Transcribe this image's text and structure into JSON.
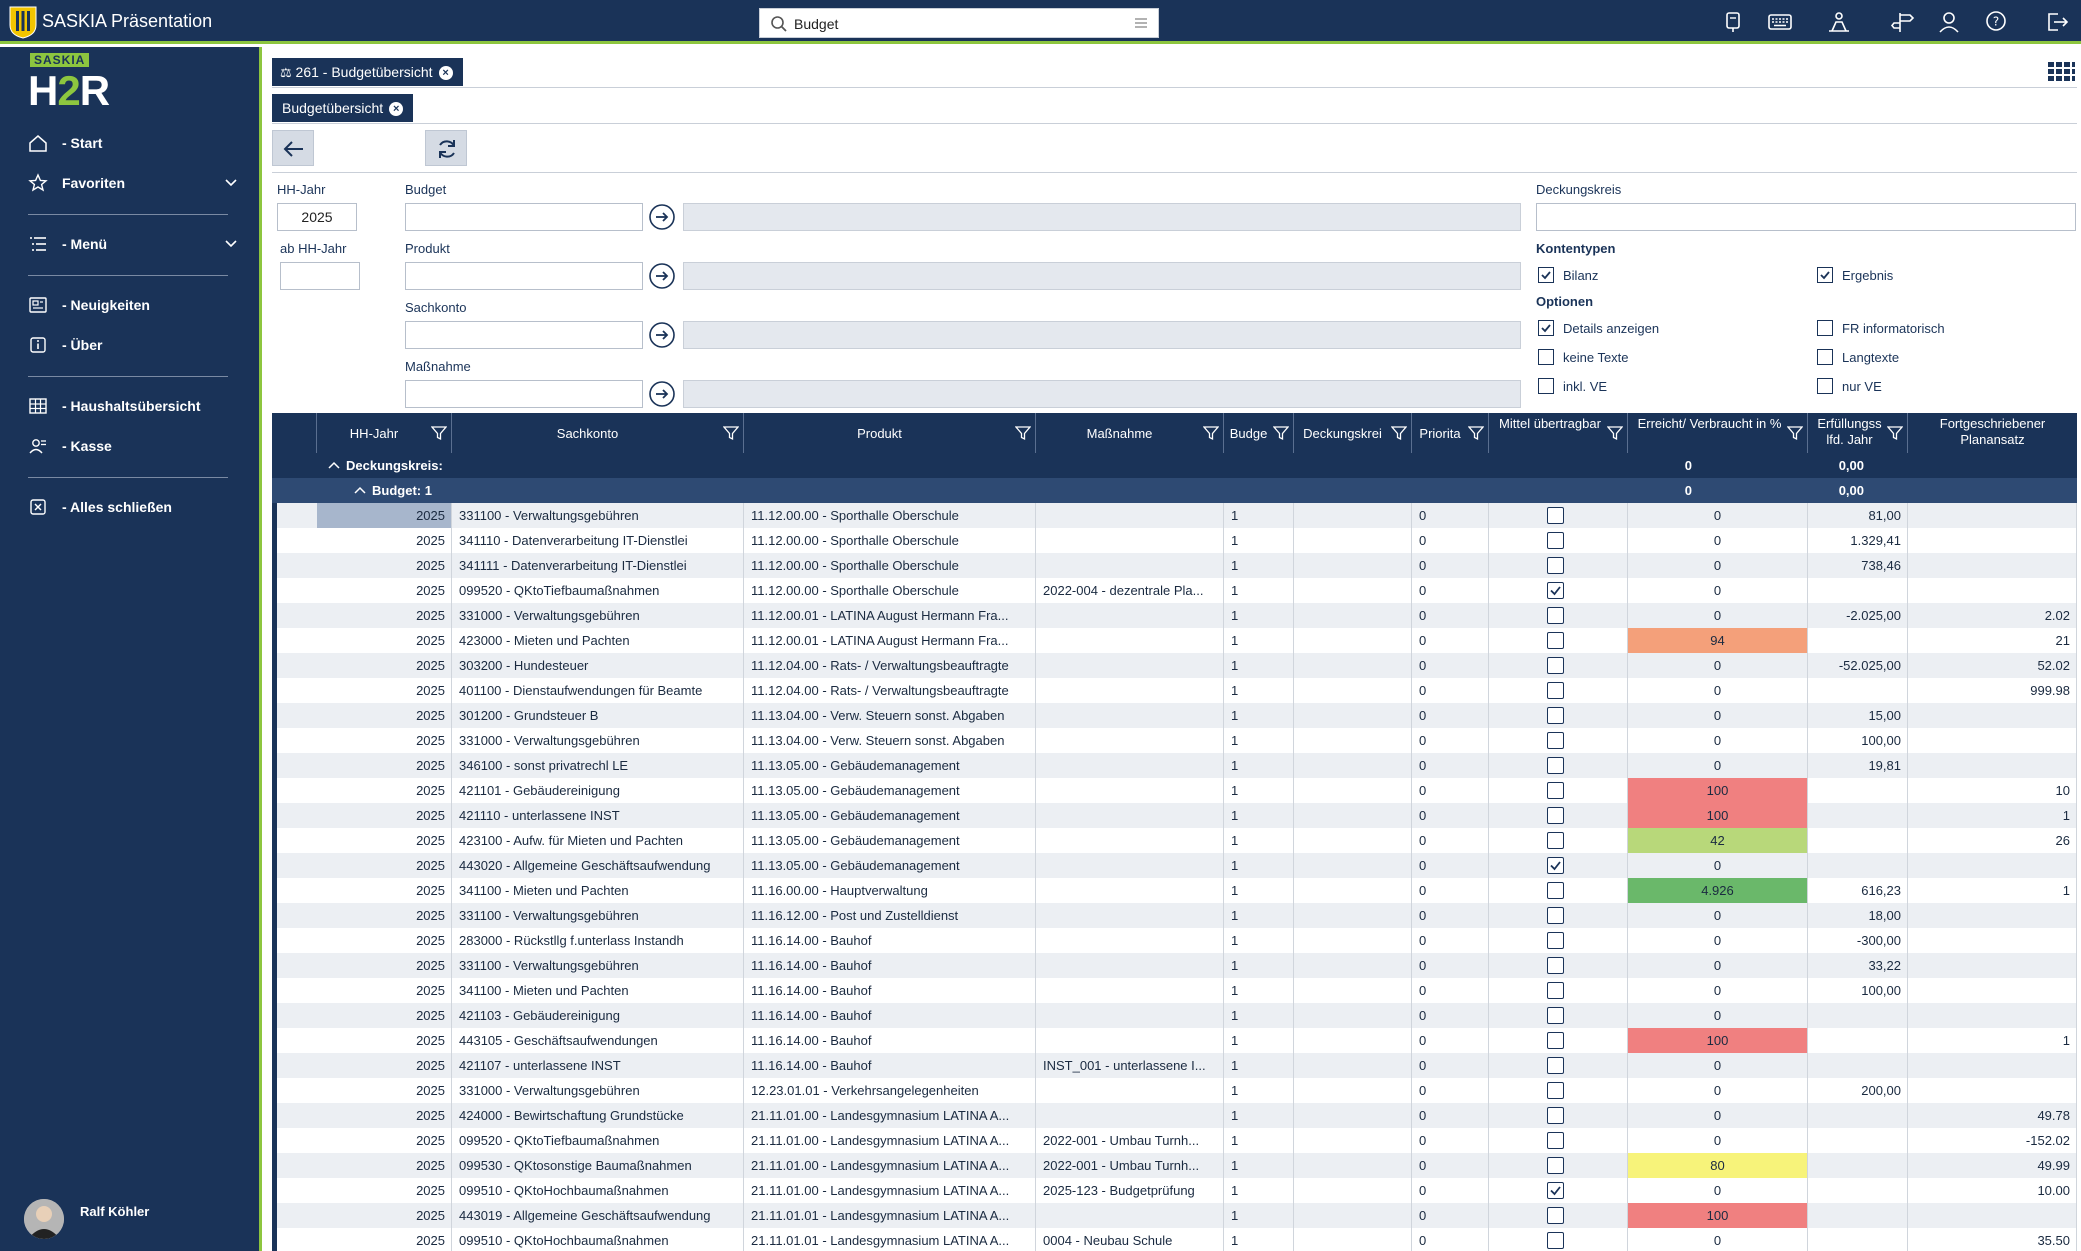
{
  "app": {
    "title": "SASKIA Präsentation",
    "search_value": "Budget"
  },
  "brand": {
    "tag": "SASKIA",
    "logo_h": "H",
    "logo_2": "2",
    "logo_r": "R"
  },
  "colors": {
    "navy": "#1a3358",
    "green": "#8dc63f",
    "salmon": "#f4a07a",
    "red": "#f08080",
    "lightgreen": "#b8d87a",
    "green_mid": "#6ab86a",
    "yellow": "#f7f37a"
  },
  "sidebar": {
    "items": [
      {
        "label": "- Start",
        "icon": "home-icon"
      },
      {
        "label": "Favoriten",
        "icon": "star-icon"
      },
      {
        "label": "- Menü",
        "icon": "menu-list-icon"
      },
      {
        "label": "- Neuigkeiten",
        "icon": "news-icon"
      },
      {
        "label": "- Über",
        "icon": "info-icon"
      },
      {
        "label": "- Haushaltsübersicht",
        "icon": "table-icon"
      },
      {
        "label": "- Kasse",
        "icon": "users-icon"
      },
      {
        "label": "- Alles schließen",
        "icon": "close-box-icon"
      }
    ],
    "user": "Ralf Köhler"
  },
  "tabs": {
    "main": "261 - Budgetübersicht",
    "sub": "Budgetübersicht"
  },
  "filters": {
    "hh_jahr_label": "HH-Jahr",
    "hh_jahr_value": "2025",
    "ab_hh_jahr_label": "ab HH-Jahr",
    "ab_hh_jahr_value": "",
    "budget_label": "Budget",
    "produkt_label": "Produkt",
    "sachkonto_label": "Sachkonto",
    "massnahme_label": "Maßnahme",
    "deckungskreis_label": "Deckungskreis",
    "kontentypen_label": "Kontentypen",
    "optionen_label": "Optionen",
    "checks": {
      "bilanz": "Bilanz",
      "ergebnis": "Ergebnis",
      "details": "Details anzeigen",
      "fr_info": "FR informatorisch",
      "keine_texte": "keine Texte",
      "langtexte": "Langtexte",
      "inkl_ve": "inkl. VE",
      "nur_ve": "nur VE"
    }
  },
  "grid": {
    "headers": {
      "hh_jahr": "HH-Jahr",
      "sachkonto": "Sachkonto",
      "produkt": "Produkt",
      "massnahme": "Maßnahme",
      "budget": "Budge",
      "deckungskreis": "Deckungskrei",
      "prioritaet": "Priorita",
      "mittel": "Mittel übertragbar",
      "erreicht": "Erreicht/ Verbraucht in %",
      "erfuellung": "Erfüllungss lfd. Jahr",
      "fortgeschrieben": "Fortgeschriebener Planansatz"
    },
    "group1": {
      "label": "Deckungskreis:",
      "erreicht": "0",
      "erfuellung": "0,00"
    },
    "group2": {
      "label": "Budget: 1",
      "erreicht": "0",
      "erfuellung": "0,00"
    },
    "rows": [
      {
        "year": "2025",
        "sachkonto": "331100 - Verwaltungsgebühren",
        "produkt": "11.12.00.00 - Sporthalle Oberschule",
        "massnahme": "",
        "budget": "1",
        "prio": "0",
        "checked": false,
        "erreicht": "0",
        "erreicht_color": "",
        "erfuellung": "81,00",
        "fort": ""
      },
      {
        "year": "2025",
        "sachkonto": "341110 - Datenverarbeitung IT-Dienstlei",
        "produkt": "11.12.00.00 - Sporthalle Oberschule",
        "massnahme": "",
        "budget": "1",
        "prio": "0",
        "checked": false,
        "erreicht": "0",
        "erreicht_color": "",
        "erfuellung": "1.329,41",
        "fort": ""
      },
      {
        "year": "2025",
        "sachkonto": "341111 - Datenverarbeitung IT-Dienstlei",
        "produkt": "11.12.00.00 - Sporthalle Oberschule",
        "massnahme": "",
        "budget": "1",
        "prio": "0",
        "checked": false,
        "erreicht": "0",
        "erreicht_color": "",
        "erfuellung": "738,46",
        "fort": ""
      },
      {
        "year": "2025",
        "sachkonto": "099520 - QKtoTiefbaumaßnahmen",
        "produkt": "11.12.00.00 - Sporthalle Oberschule",
        "massnahme": "2022-004 - dezentrale Pla...",
        "budget": "1",
        "prio": "0",
        "checked": true,
        "erreicht": "0",
        "erreicht_color": "",
        "erfuellung": "",
        "fort": ""
      },
      {
        "year": "2025",
        "sachkonto": "331000 - Verwaltungsgebühren",
        "produkt": "11.12.00.01 - LATINA August Hermann Fra...",
        "massnahme": "",
        "budget": "1",
        "prio": "0",
        "checked": false,
        "erreicht": "0",
        "erreicht_color": "",
        "erfuellung": "-2.025,00",
        "fort": "2.02"
      },
      {
        "year": "2025",
        "sachkonto": "423000 - Mieten und Pachten",
        "produkt": "11.12.00.01 - LATINA August Hermann Fra...",
        "massnahme": "",
        "budget": "1",
        "prio": "0",
        "checked": false,
        "erreicht": "94",
        "erreicht_color": "#f4a07a",
        "erfuellung": "",
        "fort": "21"
      },
      {
        "year": "2025",
        "sachkonto": "303200 - Hundesteuer",
        "produkt": "11.12.04.00 - Rats- / Verwaltungsbeauftragte",
        "massnahme": "",
        "budget": "1",
        "prio": "0",
        "checked": false,
        "erreicht": "0",
        "erreicht_color": "",
        "erfuellung": "-52.025,00",
        "fort": "52.02"
      },
      {
        "year": "2025",
        "sachkonto": "401100 - Dienstaufwendungen für Beamte",
        "produkt": "11.12.04.00 - Rats- / Verwaltungsbeauftragte",
        "massnahme": "",
        "budget": "1",
        "prio": "0",
        "checked": false,
        "erreicht": "0",
        "erreicht_color": "",
        "erfuellung": "",
        "fort": "999.98"
      },
      {
        "year": "2025",
        "sachkonto": "301200 - Grundsteuer B",
        "produkt": "11.13.04.00 - Verw. Steuern sonst. Abgaben",
        "massnahme": "",
        "budget": "1",
        "prio": "0",
        "checked": false,
        "erreicht": "0",
        "erreicht_color": "",
        "erfuellung": "15,00",
        "fort": ""
      },
      {
        "year": "2025",
        "sachkonto": "331000 - Verwaltungsgebühren",
        "produkt": "11.13.04.00 - Verw. Steuern sonst. Abgaben",
        "massnahme": "",
        "budget": "1",
        "prio": "0",
        "checked": false,
        "erreicht": "0",
        "erreicht_color": "",
        "erfuellung": "100,00",
        "fort": ""
      },
      {
        "year": "2025",
        "sachkonto": "346100 - sonst privatrechl LE",
        "produkt": "11.13.05.00 - Gebäudemanagement",
        "massnahme": "",
        "budget": "1",
        "prio": "0",
        "checked": false,
        "erreicht": "0",
        "erreicht_color": "",
        "erfuellung": "19,81",
        "fort": ""
      },
      {
        "year": "2025",
        "sachkonto": "421101 - Gebäudereinigung",
        "produkt": "11.13.05.00 - Gebäudemanagement",
        "massnahme": "",
        "budget": "1",
        "prio": "0",
        "checked": false,
        "erreicht": "100",
        "erreicht_color": "#f08080",
        "erfuellung": "",
        "fort": "10"
      },
      {
        "year": "2025",
        "sachkonto": "421110 - unterlassene INST",
        "produkt": "11.13.05.00 - Gebäudemanagement",
        "massnahme": "",
        "budget": "1",
        "prio": "0",
        "checked": false,
        "erreicht": "100",
        "erreicht_color": "#f08080",
        "erfuellung": "",
        "fort": "1"
      },
      {
        "year": "2025",
        "sachkonto": "423100 - Aufw. für Mieten und Pachten",
        "produkt": "11.13.05.00 - Gebäudemanagement",
        "massnahme": "",
        "budget": "1",
        "prio": "0",
        "checked": false,
        "erreicht": "42",
        "erreicht_color": "#b8d87a",
        "erfuellung": "",
        "fort": "26"
      },
      {
        "year": "2025",
        "sachkonto": "443020 - Allgemeine Geschäftsaufwendung",
        "produkt": "11.13.05.00 - Gebäudemanagement",
        "massnahme": "",
        "budget": "1",
        "prio": "0",
        "checked": true,
        "erreicht": "0",
        "erreicht_color": "",
        "erfuellung": "",
        "fort": ""
      },
      {
        "year": "2025",
        "sachkonto": "341100 - Mieten und Pachten",
        "produkt": "11.16.00.00 - Hauptverwaltung",
        "massnahme": "",
        "budget": "1",
        "prio": "0",
        "checked": false,
        "erreicht": "4.926",
        "erreicht_color": "#6ab86a",
        "erfuellung": "616,23",
        "fort": "1"
      },
      {
        "year": "2025",
        "sachkonto": "331100 - Verwaltungsgebühren",
        "produkt": "11.16.12.00 - Post und Zustelldienst",
        "massnahme": "",
        "budget": "1",
        "prio": "0",
        "checked": false,
        "erreicht": "0",
        "erreicht_color": "",
        "erfuellung": "18,00",
        "fort": ""
      },
      {
        "year": "2025",
        "sachkonto": "283000 - Rückstllg f.unterlass Instandh",
        "produkt": "11.16.14.00 - Bauhof",
        "massnahme": "",
        "budget": "1",
        "prio": "0",
        "checked": false,
        "erreicht": "0",
        "erreicht_color": "",
        "erfuellung": "-300,00",
        "fort": ""
      },
      {
        "year": "2025",
        "sachkonto": "331100 - Verwaltungsgebühren",
        "produkt": "11.16.14.00 - Bauhof",
        "massnahme": "",
        "budget": "1",
        "prio": "0",
        "checked": false,
        "erreicht": "0",
        "erreicht_color": "",
        "erfuellung": "33,22",
        "fort": ""
      },
      {
        "year": "2025",
        "sachkonto": "341100 - Mieten und Pachten",
        "produkt": "11.16.14.00 - Bauhof",
        "massnahme": "",
        "budget": "1",
        "prio": "0",
        "checked": false,
        "erreicht": "0",
        "erreicht_color": "",
        "erfuellung": "100,00",
        "fort": ""
      },
      {
        "year": "2025",
        "sachkonto": "421103 - Gebäudereinigung",
        "produkt": "11.16.14.00 - Bauhof",
        "massnahme": "",
        "budget": "1",
        "prio": "0",
        "checked": false,
        "erreicht": "0",
        "erreicht_color": "",
        "erfuellung": "",
        "fort": ""
      },
      {
        "year": "2025",
        "sachkonto": "443105 - Geschäftsaufwendungen",
        "produkt": "11.16.14.00 - Bauhof",
        "massnahme": "",
        "budget": "1",
        "prio": "0",
        "checked": false,
        "erreicht": "100",
        "erreicht_color": "#f08080",
        "erfuellung": "",
        "fort": "1"
      },
      {
        "year": "2025",
        "sachkonto": "421107 - unterlassene INST",
        "produkt": "11.16.14.00 - Bauhof",
        "massnahme": "INST_001 - unterlassene I...",
        "budget": "1",
        "prio": "0",
        "checked": false,
        "erreicht": "0",
        "erreicht_color": "",
        "erfuellung": "",
        "fort": ""
      },
      {
        "year": "2025",
        "sachkonto": "331000 - Verwaltungsgebühren",
        "produkt": "12.23.01.01 - Verkehrsangelegenheiten",
        "massnahme": "",
        "budget": "1",
        "prio": "0",
        "checked": false,
        "erreicht": "0",
        "erreicht_color": "",
        "erfuellung": "200,00",
        "fort": ""
      },
      {
        "year": "2025",
        "sachkonto": "424000 - Bewirtschaftung Grundstücke",
        "produkt": "21.11.01.00 - Landesgymnasium LATINA A...",
        "massnahme": "",
        "budget": "1",
        "prio": "0",
        "checked": false,
        "erreicht": "0",
        "erreicht_color": "",
        "erfuellung": "",
        "fort": "49.78"
      },
      {
        "year": "2025",
        "sachkonto": "099520 - QKtoTiefbaumaßnahmen",
        "produkt": "21.11.01.00 - Landesgymnasium LATINA A...",
        "massnahme": "2022-001 - Umbau Turnh...",
        "budget": "1",
        "prio": "0",
        "checked": false,
        "erreicht": "0",
        "erreicht_color": "",
        "erfuellung": "",
        "fort": "-152.02"
      },
      {
        "year": "2025",
        "sachkonto": "099530 - QKtosonstige Baumaßnahmen",
        "produkt": "21.11.01.00 - Landesgymnasium LATINA A...",
        "massnahme": "2022-001 - Umbau Turnh...",
        "budget": "1",
        "prio": "0",
        "checked": false,
        "erreicht": "80",
        "erreicht_color": "#f7f37a",
        "erfuellung": "",
        "fort": "49.99"
      },
      {
        "year": "2025",
        "sachkonto": "099510 - QKtoHochbaumaßnahmen",
        "produkt": "21.11.01.00 - Landesgymnasium LATINA A...",
        "massnahme": "2025-123 - Budgetprüfung",
        "budget": "1",
        "prio": "0",
        "checked": true,
        "erreicht": "0",
        "erreicht_color": "",
        "erfuellung": "",
        "fort": "10.00"
      },
      {
        "year": "2025",
        "sachkonto": "443019 - Allgemeine Geschäftsaufwendung",
        "produkt": "21.11.01.01 - Landesgymnasium LATINA A...",
        "massnahme": "",
        "budget": "1",
        "prio": "0",
        "checked": false,
        "erreicht": "100",
        "erreicht_color": "#f08080",
        "erfuellung": "",
        "fort": ""
      },
      {
        "year": "2025",
        "sachkonto": "099510 - QKtoHochbaumaßnahmen",
        "produkt": "21.11.01.01 - Landesgymnasium LATINA A...",
        "massnahme": "0004 - Neubau Schule",
        "budget": "1",
        "prio": "0",
        "checked": false,
        "erreicht": "0",
        "erreicht_color": "",
        "erfuellung": "",
        "fort": "35.50"
      }
    ]
  }
}
